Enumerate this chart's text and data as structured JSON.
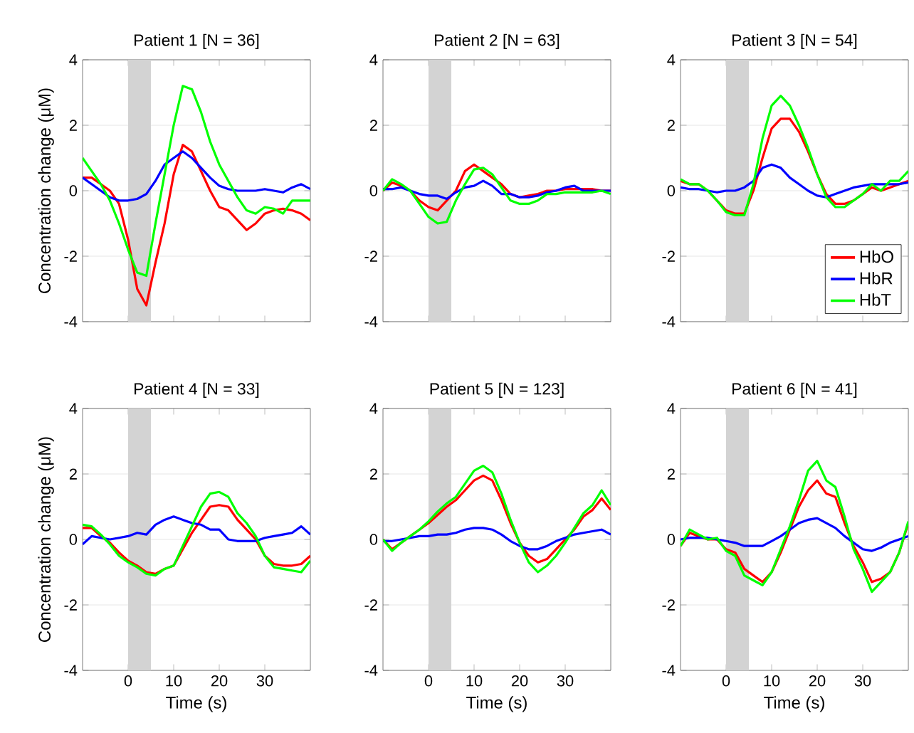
{
  "chart_data": [
    {
      "type": "line",
      "title": "Patient 1 [N = 36]",
      "ylabel": "Concentration change (μM)",
      "xlim": [
        -10,
        40
      ],
      "ylim": [
        -4,
        4
      ],
      "xticks": [
        0,
        10,
        20,
        30
      ],
      "yticks": [
        -4,
        -2,
        0,
        2,
        4
      ],
      "tick_labels": "y",
      "grid": "y",
      "bands": [
        {
          "axis": "x",
          "from": 0,
          "to": 5,
          "color": "#d3d3d3"
        }
      ],
      "x": [
        -10,
        -8,
        -6,
        -4,
        -2,
        0,
        2,
        4,
        6,
        8,
        10,
        12,
        14,
        16,
        18,
        20,
        22,
        24,
        26,
        28,
        30,
        32,
        34,
        36,
        38,
        40
      ],
      "series": [
        {
          "color": "#ff0000",
          "values": [
            0.4,
            0.4,
            0.2,
            0.0,
            -0.4,
            -1.5,
            -3.0,
            -3.5,
            -2.2,
            -1.0,
            0.5,
            1.4,
            1.2,
            0.6,
            0.0,
            -0.5,
            -0.6,
            -0.9,
            -1.2,
            -1.0,
            -0.7,
            -0.6,
            -0.55,
            -0.6,
            -0.7,
            -0.9
          ]
        },
        {
          "color": "#0000ff",
          "values": [
            0.4,
            0.2,
            0.0,
            -0.2,
            -0.3,
            -0.3,
            -0.25,
            -0.1,
            0.3,
            0.8,
            1.0,
            1.2,
            1.0,
            0.7,
            0.4,
            0.15,
            0.05,
            0.0,
            0.0,
            0.0,
            0.05,
            0.0,
            -0.05,
            0.1,
            0.2,
            0.05
          ]
        },
        {
          "color": "#00ff00",
          "values": [
            1.0,
            0.6,
            0.2,
            -0.3,
            -1.0,
            -1.8,
            -2.5,
            -2.6,
            -1.0,
            0.5,
            2.0,
            3.2,
            3.1,
            2.4,
            1.5,
            0.8,
            0.3,
            -0.2,
            -0.6,
            -0.7,
            -0.5,
            -0.55,
            -0.7,
            -0.3,
            -0.3,
            -0.3
          ]
        }
      ]
    },
    {
      "type": "line",
      "title": "Patient 2 [N = 63]",
      "xlim": [
        -10,
        40
      ],
      "ylim": [
        -4,
        4
      ],
      "xticks": [
        0,
        10,
        20,
        30
      ],
      "yticks": [
        -4,
        -2,
        0,
        2,
        4
      ],
      "tick_labels": "y",
      "grid": "y",
      "bands": [
        {
          "axis": "x",
          "from": 0,
          "to": 5,
          "color": "#d3d3d3"
        }
      ],
      "x": [
        -10,
        -8,
        -6,
        -4,
        -2,
        0,
        2,
        4,
        6,
        8,
        10,
        12,
        14,
        16,
        18,
        20,
        22,
        24,
        26,
        28,
        30,
        32,
        34,
        36,
        38,
        40
      ],
      "series": [
        {
          "color": "#ff0000",
          "values": [
            0.0,
            0.25,
            0.15,
            0.0,
            -0.3,
            -0.5,
            -0.6,
            -0.3,
            0.0,
            0.6,
            0.8,
            0.6,
            0.4,
            0.2,
            -0.1,
            -0.2,
            -0.15,
            -0.1,
            0.0,
            0.0,
            0.05,
            0.05,
            0.05,
            0.05,
            0.0,
            0.0
          ]
        },
        {
          "color": "#0000ff",
          "values": [
            0.05,
            0.05,
            0.1,
            0.0,
            -0.1,
            -0.15,
            -0.15,
            -0.25,
            -0.05,
            0.1,
            0.15,
            0.3,
            0.15,
            -0.1,
            -0.1,
            -0.2,
            -0.2,
            -0.15,
            -0.05,
            0.0,
            0.1,
            0.15,
            0.0,
            0.0,
            0.0,
            0.0
          ]
        },
        {
          "color": "#00ff00",
          "values": [
            0.0,
            0.35,
            0.2,
            0.0,
            -0.4,
            -0.8,
            -1.0,
            -0.95,
            -0.3,
            0.2,
            0.65,
            0.7,
            0.5,
            0.1,
            -0.3,
            -0.4,
            -0.4,
            -0.3,
            -0.1,
            -0.1,
            -0.05,
            -0.05,
            -0.05,
            -0.05,
            0.0,
            -0.1
          ]
        }
      ]
    },
    {
      "type": "line",
      "title": "Patient 3 [N = 54]",
      "xlim": [
        -10,
        40
      ],
      "ylim": [
        -4,
        4
      ],
      "xticks": [
        0,
        10,
        20,
        30
      ],
      "yticks": [
        -4,
        -2,
        0,
        2,
        4
      ],
      "tick_labels": "y",
      "grid": "y",
      "legend": "bottom right",
      "bands": [
        {
          "axis": "x",
          "from": 0,
          "to": 5,
          "color": "#d3d3d3"
        }
      ],
      "x": [
        -10,
        -8,
        -6,
        -4,
        -2,
        0,
        2,
        4,
        6,
        8,
        10,
        12,
        14,
        16,
        18,
        20,
        22,
        24,
        26,
        28,
        30,
        32,
        34,
        36,
        38,
        40
      ],
      "series": [
        {
          "name": "HbO",
          "color": "#ff0000",
          "values": [
            0.3,
            0.2,
            0.2,
            0.0,
            -0.3,
            -0.6,
            -0.7,
            -0.7,
            0.0,
            1.0,
            1.9,
            2.2,
            2.2,
            1.8,
            1.2,
            0.5,
            -0.1,
            -0.4,
            -0.4,
            -0.3,
            -0.1,
            0.1,
            0.0,
            0.1,
            0.2,
            0.3
          ]
        },
        {
          "name": "HbR",
          "color": "#0000ff",
          "values": [
            0.1,
            0.05,
            0.05,
            0.0,
            -0.05,
            0.0,
            0.0,
            0.1,
            0.3,
            0.7,
            0.8,
            0.7,
            0.4,
            0.2,
            0.0,
            -0.15,
            -0.2,
            -0.1,
            0.0,
            0.1,
            0.15,
            0.2,
            0.2,
            0.2,
            0.2,
            0.25
          ]
        },
        {
          "name": "HbT",
          "color": "#00ff00",
          "values": [
            0.35,
            0.2,
            0.2,
            0.0,
            -0.3,
            -0.65,
            -0.75,
            -0.75,
            0.2,
            1.6,
            2.6,
            2.9,
            2.6,
            2.0,
            1.3,
            0.5,
            -0.2,
            -0.5,
            -0.5,
            -0.3,
            -0.1,
            0.2,
            0.0,
            0.3,
            0.3,
            0.6
          ]
        }
      ]
    },
    {
      "type": "line",
      "title": "Patient 4 [N = 33]",
      "ylabel": "Concentration change (μM)",
      "xlabel": "Time (s)",
      "xlim": [
        -10,
        40
      ],
      "ylim": [
        -4,
        4
      ],
      "xticks": [
        0,
        10,
        20,
        30
      ],
      "yticks": [
        -4,
        -2,
        0,
        2,
        4
      ],
      "grid": "y",
      "bands": [
        {
          "axis": "x",
          "from": 0,
          "to": 5,
          "color": "#d3d3d3"
        }
      ],
      "x": [
        -10,
        -8,
        -6,
        -4,
        -2,
        0,
        2,
        4,
        6,
        8,
        10,
        12,
        14,
        16,
        18,
        20,
        22,
        24,
        26,
        28,
        30,
        32,
        34,
        36,
        38,
        40
      ],
      "series": [
        {
          "color": "#ff0000",
          "values": [
            0.35,
            0.35,
            0.1,
            -0.1,
            -0.4,
            -0.65,
            -0.8,
            -1.0,
            -1.05,
            -0.9,
            -0.8,
            -0.3,
            0.2,
            0.6,
            1.0,
            1.05,
            1.0,
            0.6,
            0.3,
            0.0,
            -0.5,
            -0.75,
            -0.8,
            -0.8,
            -0.75,
            -0.5
          ]
        },
        {
          "color": "#0000ff",
          "values": [
            -0.15,
            0.1,
            0.05,
            0.0,
            0.05,
            0.1,
            0.2,
            0.15,
            0.45,
            0.6,
            0.7,
            0.6,
            0.5,
            0.45,
            0.3,
            0.3,
            0.0,
            -0.05,
            -0.05,
            -0.05,
            0.05,
            0.1,
            0.15,
            0.2,
            0.4,
            0.15
          ]
        },
        {
          "color": "#00ff00",
          "values": [
            0.45,
            0.4,
            0.15,
            -0.15,
            -0.5,
            -0.7,
            -0.85,
            -1.05,
            -1.1,
            -0.9,
            -0.8,
            -0.2,
            0.4,
            1.0,
            1.4,
            1.45,
            1.3,
            0.8,
            0.5,
            0.1,
            -0.5,
            -0.85,
            -0.9,
            -0.95,
            -1.0,
            -0.65
          ]
        }
      ]
    },
    {
      "type": "line",
      "title": "Patient 5 [N = 123]",
      "xlabel": "Time (s)",
      "xlim": [
        -10,
        40
      ],
      "ylim": [
        -4,
        4
      ],
      "xticks": [
        0,
        10,
        20,
        30
      ],
      "yticks": [
        -4,
        -2,
        0,
        2,
        4
      ],
      "grid": "y",
      "bands": [
        {
          "axis": "x",
          "from": 0,
          "to": 5,
          "color": "#d3d3d3"
        }
      ],
      "x": [
        -10,
        -8,
        -6,
        -4,
        -2,
        0,
        2,
        4,
        6,
        8,
        10,
        12,
        14,
        16,
        18,
        20,
        22,
        24,
        26,
        28,
        30,
        32,
        34,
        36,
        38,
        40
      ],
      "series": [
        {
          "color": "#ff0000",
          "values": [
            0.0,
            -0.3,
            -0.1,
            0.1,
            0.3,
            0.5,
            0.75,
            1.0,
            1.2,
            1.5,
            1.8,
            1.95,
            1.8,
            1.2,
            0.5,
            -0.1,
            -0.5,
            -0.7,
            -0.6,
            -0.3,
            0.0,
            0.3,
            0.7,
            0.9,
            1.25,
            0.9
          ]
        },
        {
          "color": "#0000ff",
          "values": [
            -0.05,
            -0.05,
            0.0,
            0.05,
            0.1,
            0.1,
            0.15,
            0.15,
            0.2,
            0.3,
            0.35,
            0.35,
            0.3,
            0.15,
            -0.05,
            -0.2,
            -0.3,
            -0.3,
            -0.2,
            -0.05,
            0.05,
            0.15,
            0.2,
            0.25,
            0.3,
            0.15
          ]
        },
        {
          "color": "#00ff00",
          "values": [
            0.0,
            -0.35,
            -0.1,
            0.1,
            0.3,
            0.55,
            0.85,
            1.1,
            1.3,
            1.7,
            2.1,
            2.25,
            2.05,
            1.4,
            0.6,
            -0.1,
            -0.7,
            -1.0,
            -0.8,
            -0.5,
            -0.1,
            0.35,
            0.8,
            1.05,
            1.5,
            1.05
          ]
        }
      ]
    },
    {
      "type": "line",
      "title": "Patient 6 [N = 41]",
      "xlabel": "Time (s)",
      "xlim": [
        -10,
        40
      ],
      "ylim": [
        -4,
        4
      ],
      "xticks": [
        0,
        10,
        20,
        30
      ],
      "yticks": [
        -4,
        -2,
        0,
        2,
        4
      ],
      "grid": "y",
      "bands": [
        {
          "axis": "x",
          "from": 0,
          "to": 5,
          "color": "#d3d3d3"
        }
      ],
      "x": [
        -10,
        -8,
        -6,
        -4,
        -2,
        0,
        2,
        4,
        6,
        8,
        10,
        12,
        14,
        16,
        18,
        20,
        22,
        24,
        26,
        28,
        30,
        32,
        34,
        36,
        38,
        40
      ],
      "series": [
        {
          "color": "#ff0000",
          "values": [
            -0.2,
            0.2,
            0.1,
            0.0,
            0.0,
            -0.3,
            -0.4,
            -0.9,
            -1.1,
            -1.3,
            -1.0,
            -0.4,
            0.3,
            1.0,
            1.5,
            1.8,
            1.4,
            1.3,
            0.5,
            -0.2,
            -0.7,
            -1.3,
            -1.2,
            -1.0,
            -0.4,
            0.5
          ]
        },
        {
          "color": "#0000ff",
          "values": [
            0.0,
            0.05,
            0.05,
            0.05,
            0.0,
            -0.05,
            -0.1,
            -0.2,
            -0.2,
            -0.2,
            -0.05,
            0.1,
            0.3,
            0.5,
            0.6,
            0.65,
            0.5,
            0.35,
            0.1,
            -0.1,
            -0.3,
            -0.35,
            -0.25,
            -0.1,
            0.0,
            0.1
          ]
        },
        {
          "color": "#00ff00",
          "values": [
            -0.2,
            0.3,
            0.15,
            0.0,
            0.05,
            -0.35,
            -0.5,
            -1.1,
            -1.25,
            -1.4,
            -1.0,
            -0.3,
            0.4,
            1.2,
            2.1,
            2.4,
            1.8,
            1.6,
            0.7,
            -0.3,
            -0.9,
            -1.6,
            -1.3,
            -1.0,
            -0.4,
            0.55
          ]
        }
      ]
    }
  ]
}
